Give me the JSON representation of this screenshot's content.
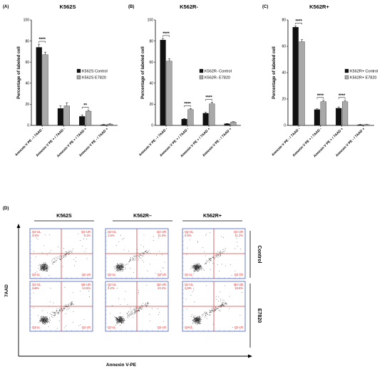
{
  "colors": {
    "control": "#111111",
    "treated": "#a9a9a9",
    "flow_grid": "#d94040",
    "flow_frame": "#5a6fc4",
    "dots": "#333333"
  },
  "chart_data": [
    {
      "type": "bar",
      "panel_label": "(A)",
      "title": "K562S",
      "ylabel": "Percentage of labeled cell",
      "ylim": [
        0,
        100
      ],
      "yticks": [
        0,
        20,
        40,
        60,
        80,
        100
      ],
      "categories": [
        "Annexin V PE - / 7AAD -",
        "Annexin V PE + / 7AAD -",
        "Annexin V PE + / 7AAD +",
        "Annexin V PE - / 7AAD +"
      ],
      "series": [
        {
          "name": "K562S Control",
          "values": [
            74,
            16,
            8.5,
            0.6
          ],
          "errors": [
            3,
            2.5,
            1.5,
            0.3
          ]
        },
        {
          "name": "K562S  E7820",
          "values": [
            67,
            18.5,
            13.5,
            1.2
          ],
          "errors": [
            2.5,
            3,
            1,
            0.3
          ]
        }
      ],
      "significance": [
        {
          "category": 0,
          "label": "****"
        },
        {
          "category": 2,
          "label": "**"
        }
      ],
      "legend_position": "right"
    },
    {
      "type": "bar",
      "panel_label": "(B)",
      "title": "K562R-",
      "ylabel": "Percentage of labeled cell",
      "ylim": [
        0,
        100
      ],
      "yticks": [
        0,
        20,
        40,
        60,
        80,
        100
      ],
      "categories": [
        "Annexin V PE - / 7AAD -",
        "Annexin V PE + / 7AAD -",
        "Annexin V PE + / 7AAD +",
        "Annexin V PE - / 7AAD +"
      ],
      "series": [
        {
          "name": "K562R- Control",
          "values": [
            81,
            6,
            11.5,
            1.5
          ],
          "errors": [
            1.5,
            0.6,
            1,
            0.3
          ]
        },
        {
          "name": "K562R-  E7820",
          "values": [
            61,
            15,
            20.5,
            3.2
          ],
          "errors": [
            2,
            1,
            1.5,
            0.4
          ]
        }
      ],
      "significance": [
        {
          "category": 0,
          "label": "****"
        },
        {
          "category": 1,
          "label": "****"
        },
        {
          "category": 2,
          "label": "****"
        }
      ],
      "legend_position": "right"
    },
    {
      "type": "bar",
      "panel_label": "(C)",
      "title": "K562R+",
      "ylabel": "Percentage of labeled cell",
      "ylim": [
        0,
        80
      ],
      "yticks": [
        0,
        20,
        40,
        60,
        80
      ],
      "categories": [
        "Annexin V PE - / 7AAD -",
        "Annexin V PE + / 7AAD -",
        "Annexin V PE + / 7AAD +",
        "Annexin V PE - / 7AAD +"
      ],
      "series": [
        {
          "name": "K562R+ Control",
          "values": [
            74.5,
            12,
            13,
            0.5
          ],
          "errors": [
            1,
            0.6,
            1,
            0.2
          ]
        },
        {
          "name": "K562R+  E7820",
          "values": [
            63.5,
            18,
            18,
            0.6
          ],
          "errors": [
            1.5,
            1,
            1,
            0.2
          ]
        }
      ],
      "significance": [
        {
          "category": 0,
          "label": "****"
        },
        {
          "category": 1,
          "label": "****"
        },
        {
          "category": 2,
          "label": "****"
        }
      ],
      "legend_position": "right"
    }
  ],
  "flow": {
    "panel_label": "(D)",
    "columns": [
      "K562S",
      "K562R–",
      "K562R+"
    ],
    "rows": [
      "Control",
      "E7820"
    ],
    "xlabel": "Annexin V-PE",
    "ylabel": "7AAD",
    "quadrant_names": {
      "ul": "Q2-UL",
      "ur": "Q2-UR",
      "ll": "Q2-LL",
      "lr": "Q2-LR"
    },
    "cells": [
      {
        "ul": "3.6%",
        "ur": "9.1%"
      },
      {
        "ul": "1.6%",
        "ur": "11.3%"
      },
      {
        "ul": "0.8%",
        "ur": "11.7%"
      },
      {
        "ul": "2.6%",
        "ur": "14.5%"
      },
      {
        "ul": "3.2%",
        "ur": "22.2%"
      },
      {
        "ul": "2.6%",
        "ur": "18.5%"
      }
    ]
  }
}
